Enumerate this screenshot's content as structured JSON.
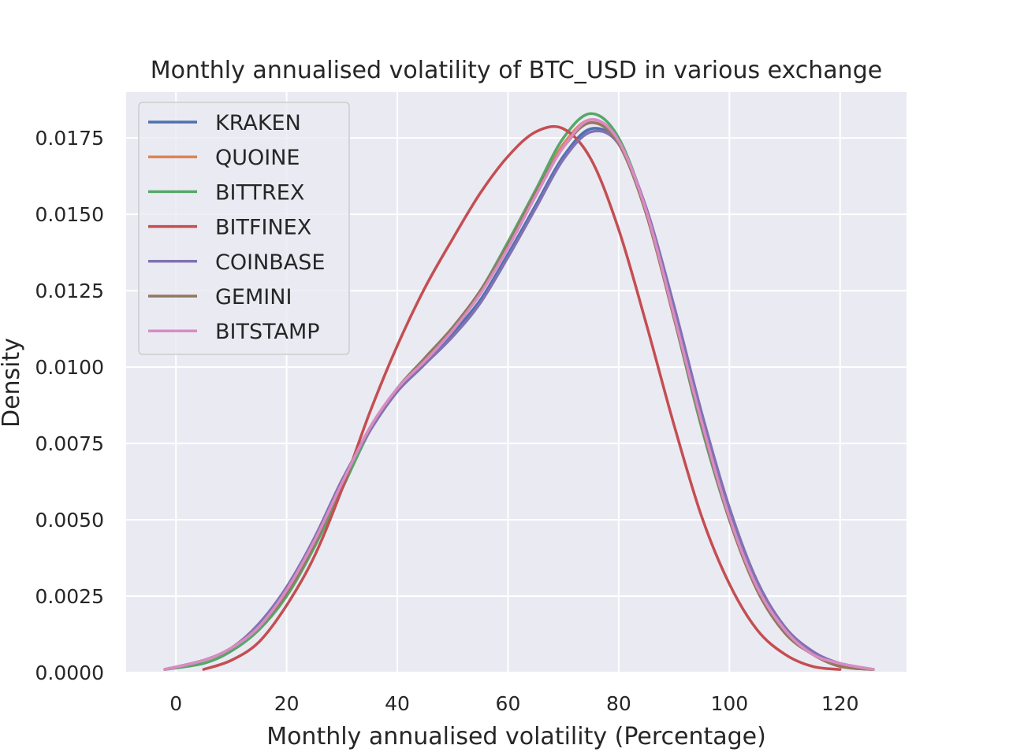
{
  "chart_data": {
    "type": "line",
    "title": "Monthly annualised volatility of BTC_USD in various exchange",
    "xlabel": "Monthly annualised volatility (Percentage)",
    "ylabel": "Density",
    "xlim": [
      -9,
      132
    ],
    "ylim": [
      0,
      0.019
    ],
    "xticks": [
      "0",
      "20",
      "40",
      "60",
      "80",
      "100",
      "120"
    ],
    "yticks": [
      "0.0000",
      "0.0025",
      "0.0050",
      "0.0075",
      "0.0100",
      "0.0125",
      "0.0150",
      "0.0175"
    ],
    "grid": true,
    "legend": "upper-left",
    "x": [
      -2,
      5,
      10,
      15,
      20,
      25,
      30,
      35,
      40,
      45,
      50,
      55,
      60,
      65,
      70,
      75,
      80,
      85,
      90,
      95,
      100,
      105,
      110,
      115,
      120,
      126
    ],
    "series": [
      {
        "name": "KRAKEN",
        "color": "#4c72b0",
        "values": [
          0.0001,
          0.0004,
          0.0008,
          0.0015,
          0.0027,
          0.0043,
          0.0062,
          0.0079,
          0.0092,
          0.0101,
          0.0111,
          0.0122,
          0.0137,
          0.0153,
          0.0169,
          0.0178,
          0.0173,
          0.0151,
          0.0118,
          0.0083,
          0.0052,
          0.0029,
          0.0014,
          0.0006,
          0.0003,
          0.0001
        ]
      },
      {
        "name": "QUOINE",
        "color": "#dd8452",
        "values": [
          0.0001,
          0.0004,
          0.0008,
          0.0015,
          0.0026,
          0.0042,
          0.0062,
          0.008,
          0.0093,
          0.0103,
          0.0113,
          0.0125,
          0.014,
          0.0157,
          0.0173,
          0.0181,
          0.0174,
          0.015,
          0.0116,
          0.0081,
          0.005,
          0.0027,
          0.0013,
          0.0006,
          0.0002,
          0.0001
        ]
      },
      {
        "name": "BITTREX",
        "color": "#55a868",
        "values": [
          0.0001,
          0.0003,
          0.0007,
          0.0014,
          0.0025,
          0.0041,
          0.006,
          0.0079,
          0.0093,
          0.0103,
          0.0113,
          0.0125,
          0.0141,
          0.0158,
          0.0175,
          0.0183,
          0.0175,
          0.0151,
          0.0116,
          0.008,
          0.005,
          0.0027,
          0.0013,
          0.0006,
          0.0002,
          0.0001
        ]
      },
      {
        "name": "BITFINEX",
        "color": "#c44e52",
        "values": [
          null,
          0.0001,
          0.0004,
          0.001,
          0.0022,
          0.0038,
          0.006,
          0.0085,
          0.0107,
          0.0126,
          0.0142,
          0.0157,
          0.0169,
          0.0177,
          0.0178,
          0.0168,
          0.0145,
          0.0114,
          0.0081,
          0.0051,
          0.0029,
          0.0014,
          0.0006,
          0.0002,
          0.0001,
          null
        ]
      },
      {
        "name": "COINBASE",
        "color": "#8172b3",
        "values": [
          0.0001,
          0.0004,
          0.0008,
          0.0016,
          0.0028,
          0.0044,
          0.0063,
          0.0079,
          0.0092,
          0.0101,
          0.011,
          0.0121,
          0.0136,
          0.0152,
          0.0168,
          0.0177,
          0.0173,
          0.0152,
          0.012,
          0.0085,
          0.0054,
          0.003,
          0.0015,
          0.0007,
          0.0003,
          0.0001
        ]
      },
      {
        "name": "GEMINI",
        "color": "#937860",
        "values": [
          0.0001,
          0.0004,
          0.0008,
          0.0015,
          0.0026,
          0.0042,
          0.0062,
          0.008,
          0.0093,
          0.0103,
          0.0113,
          0.0125,
          0.014,
          0.0157,
          0.0172,
          0.018,
          0.0173,
          0.015,
          0.0116,
          0.0081,
          0.005,
          0.0027,
          0.0013,
          0.0006,
          0.0002,
          0.0001
        ]
      },
      {
        "name": "BITSTAMP",
        "color": "#da8bc3",
        "values": [
          0.0001,
          0.0004,
          0.0008,
          0.0015,
          0.0027,
          0.0043,
          0.0062,
          0.008,
          0.0093,
          0.0102,
          0.0112,
          0.0124,
          0.0139,
          0.0156,
          0.0172,
          0.0181,
          0.0174,
          0.0151,
          0.0117,
          0.0082,
          0.0051,
          0.0028,
          0.0014,
          0.0006,
          0.0003,
          0.0001
        ]
      }
    ]
  }
}
